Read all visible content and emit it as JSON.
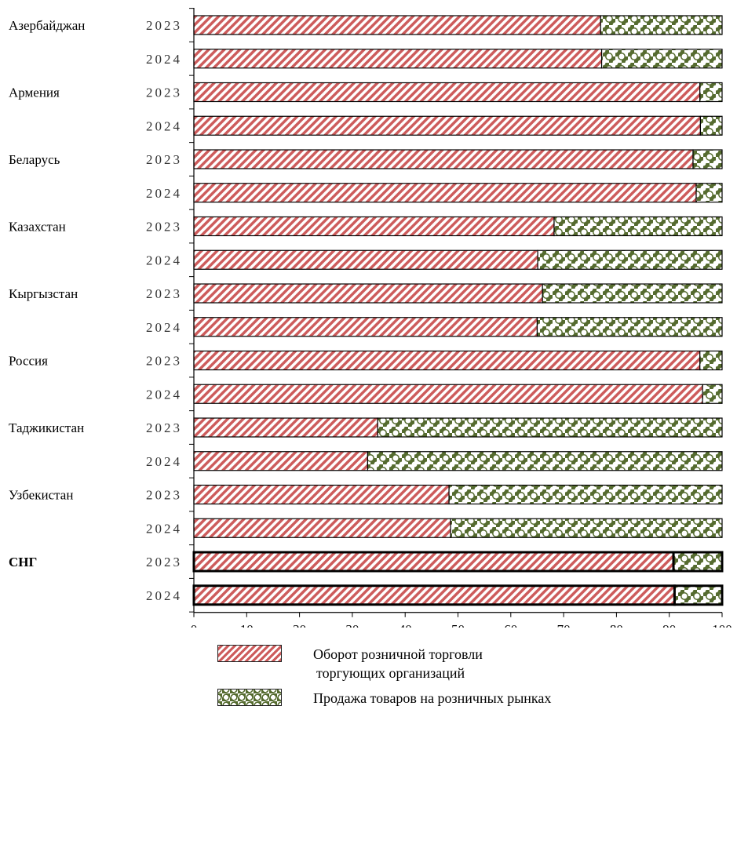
{
  "chart_data": {
    "type": "bar",
    "orientation": "horizontal",
    "stacked": true,
    "countries": [
      {
        "name": "Азербайджан",
        "bold": false
      },
      {
        "name": "Армения",
        "bold": false
      },
      {
        "name": "Беларусь",
        "bold": false
      },
      {
        "name": "Казахстан",
        "bold": false
      },
      {
        "name": "Кыргызстан",
        "bold": false
      },
      {
        "name": "Россия",
        "bold": false
      },
      {
        "name": "Таджикистан",
        "bold": false
      },
      {
        "name": "Узбекистан",
        "bold": false
      },
      {
        "name": "СНГ",
        "bold": true
      }
    ],
    "years": [
      "2023",
      "2024"
    ],
    "series": [
      {
        "name": "Оборот розничной торговли торгующих организаций",
        "name_line1": "Оборот розничной торговли",
        "name_line2": "торгующих организаций",
        "color": "#cd5c5c",
        "values": [
          77.0,
          77.2,
          95.8,
          95.9,
          94.5,
          95.1,
          68.2,
          65.1,
          66.0,
          65.0,
          95.8,
          96.3,
          34.8,
          32.9,
          48.3,
          48.6,
          90.8,
          91.0
        ]
      },
      {
        "name": "Продажа товаров на розничных рынках",
        "color": "#556b2f",
        "values": [
          23.0,
          22.8,
          4.2,
          4.1,
          5.5,
          4.9,
          31.8,
          34.9,
          34.0,
          35.0,
          4.2,
          3.7,
          65.2,
          67.1,
          51.7,
          51.4,
          9.2,
          9.0
        ]
      }
    ],
    "xlim": [
      0,
      100
    ],
    "xticks": [
      "0",
      "10",
      "20",
      "30",
      "40",
      "50",
      "60",
      "70",
      "80",
      "90",
      "100"
    ],
    "legend_position": "bottom"
  }
}
